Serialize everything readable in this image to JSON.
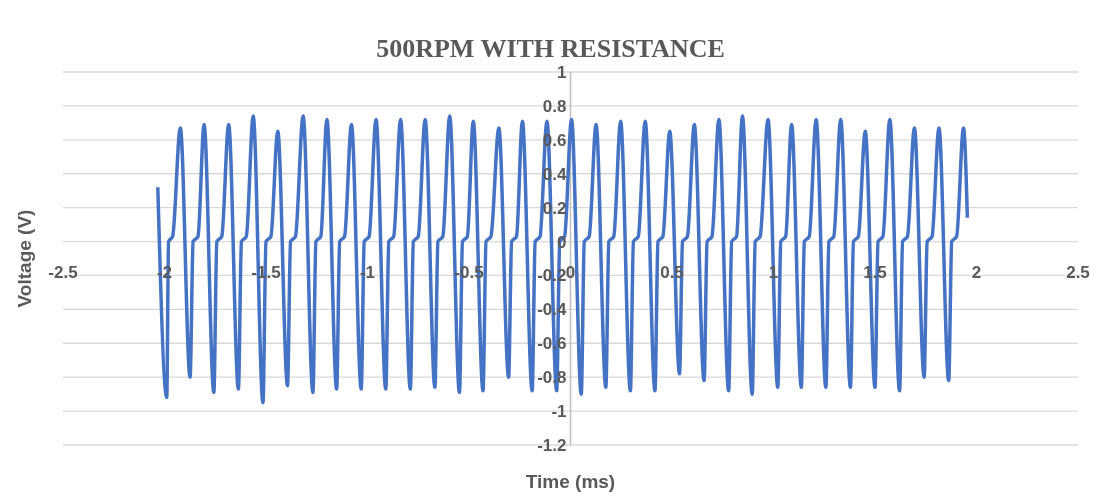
{
  "chart_data": {
    "type": "line",
    "title": "500RPM WITH RESISTANCE",
    "xlabel": "Time (ms)",
    "ylabel": "Voltage (V)",
    "xlim": [
      -2.5,
      2.5
    ],
    "xticks": [
      -2.5,
      -2,
      -1.5,
      -1,
      -0.5,
      0,
      0.5,
      1,
      1.5,
      2,
      2.5
    ],
    "ylim": [
      -1.2,
      1
    ],
    "yticks": [
      -1.2,
      -1,
      -0.8,
      -0.6,
      -0.4,
      -0.2,
      0,
      0.2,
      0.4,
      0.6,
      0.8,
      1
    ],
    "grid": "y",
    "legend": false,
    "marker": "none",
    "line_style": "solid",
    "series": [
      {
        "color": "#4472c4",
        "x": [
          -2.033,
          -1.989,
          -1.98,
          -1.96,
          -1.922,
          -1.874,
          -1.859,
          -1.835,
          -1.805,
          -1.757,
          -1.742,
          -1.718,
          -1.684,
          -1.636,
          -1.621,
          -1.597,
          -1.563,
          -1.515,
          -1.5,
          -1.476,
          -1.442,
          -1.394,
          -1.379,
          -1.355,
          -1.317,
          -1.269,
          -1.254,
          -1.23,
          -1.2,
          -1.152,
          -1.137,
          -1.113,
          -1.079,
          -1.031,
          -1.016,
          -0.992,
          -0.958,
          -0.91,
          -0.895,
          -0.871,
          -0.837,
          -0.789,
          -0.774,
          -0.75,
          -0.716,
          -0.668,
          -0.653,
          -0.629,
          -0.595,
          -0.547,
          -0.532,
          -0.508,
          -0.479,
          -0.431,
          -0.416,
          -0.392,
          -0.353,
          -0.305,
          -0.29,
          -0.266,
          -0.237,
          -0.189,
          -0.174,
          -0.15,
          -0.116,
          -0.068,
          -0.053,
          -0.029,
          0.005,
          0.053,
          0.068,
          0.092,
          0.126,
          0.174,
          0.189,
          0.213,
          0.247,
          0.295,
          0.31,
          0.334,
          0.368,
          0.416,
          0.431,
          0.455,
          0.489,
          0.537,
          0.552,
          0.576,
          0.61,
          0.658,
          0.673,
          0.697,
          0.731,
          0.779,
          0.794,
          0.818,
          0.847,
          0.895,
          0.91,
          0.934,
          0.973,
          1.021,
          1.036,
          1.06,
          1.089,
          1.137,
          1.152,
          1.176,
          1.21,
          1.258,
          1.273,
          1.297,
          1.331,
          1.379,
          1.394,
          1.418,
          1.452,
          1.5,
          1.515,
          1.539,
          1.573,
          1.621,
          1.636,
          1.66,
          1.694,
          1.742,
          1.757,
          1.781,
          1.815,
          1.863,
          1.878,
          1.902,
          1.936,
          1.955
        ],
        "values": [
          0.32,
          -0.92,
          0,
          0.03,
          0.67,
          -0.8,
          0,
          0.03,
          0.69,
          -0.89,
          0,
          0.03,
          0.69,
          -0.87,
          0,
          0.03,
          0.74,
          -0.95,
          0,
          0.03,
          0.65,
          -0.85,
          0,
          0.03,
          0.74,
          -0.89,
          0,
          0.03,
          0.72,
          -0.87,
          0,
          0.03,
          0.69,
          -0.87,
          0,
          0.03,
          0.72,
          -0.87,
          0,
          0.03,
          0.72,
          -0.87,
          0,
          0.03,
          0.72,
          -0.86,
          0,
          0.03,
          0.74,
          -0.89,
          0,
          0.03,
          0.71,
          -0.88,
          0,
          0.03,
          0.67,
          -0.8,
          0,
          0.03,
          0.71,
          -0.88,
          0,
          0.03,
          0.71,
          -0.88,
          0,
          0.03,
          0.72,
          -0.9,
          0,
          0.03,
          0.69,
          -0.86,
          0,
          0.03,
          0.71,
          -0.88,
          0,
          0.03,
          0.71,
          -0.88,
          0,
          0.03,
          0.65,
          -0.78,
          0,
          0.03,
          0.69,
          -0.82,
          0,
          0.03,
          0.72,
          -0.88,
          0,
          0.03,
          0.74,
          -0.9,
          0,
          0.03,
          0.72,
          -0.86,
          0,
          0.03,
          0.69,
          -0.86,
          0,
          0.03,
          0.72,
          -0.86,
          0,
          0.03,
          0.72,
          -0.86,
          0,
          0.03,
          0.65,
          -0.86,
          0,
          0.03,
          0.72,
          -0.88,
          0,
          0.03,
          0.67,
          -0.8,
          0,
          0.03,
          0.67,
          -0.82,
          0,
          0.03,
          0.67,
          0.14
        ]
      }
    ]
  }
}
